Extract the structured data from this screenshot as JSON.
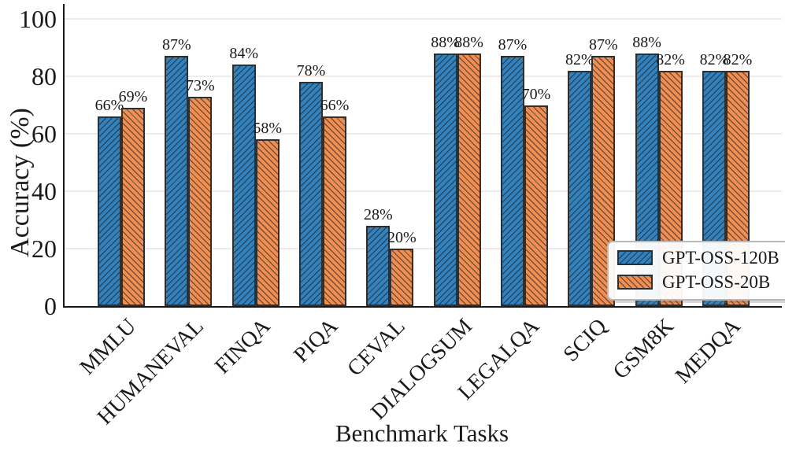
{
  "chart_data": {
    "type": "bar",
    "title": "",
    "xlabel": "Benchmark Tasks",
    "ylabel": "Accuracy (%)",
    "categories": [
      "MMLU",
      "HUMANEVAL",
      "FINQA",
      "PIQA",
      "CEVAL",
      "DIALOGSUM",
      "LEGALQA",
      "SCIQ",
      "GSM8K",
      "MEDQA"
    ],
    "series": [
      {
        "name": "GPT-OSS-120B",
        "color": "#3382bd",
        "hatch": "/",
        "values": [
          66,
          87,
          84,
          78,
          28,
          88,
          87,
          82,
          88,
          82
        ]
      },
      {
        "name": "GPT-OSS-20B",
        "color": "#ef8f53",
        "hatch": "\\",
        "values": [
          69,
          73,
          58,
          66,
          20,
          88,
          70,
          87,
          82,
          82
        ]
      }
    ],
    "value_label_format": "{v}%",
    "yticks": [
      0,
      20,
      40,
      60,
      80,
      100
    ],
    "ylim": [
      0,
      105
    ],
    "grid": "horizontal-faint",
    "legend_position": "lower-right",
    "colors": {
      "bar_edge": "#2f2f2f",
      "axis": "#1a1a1a",
      "gridline": "#f3e9e9",
      "legend_border": "#b9b9b9",
      "text": "#1a1a1a",
      "background": "#ffffff"
    }
  }
}
